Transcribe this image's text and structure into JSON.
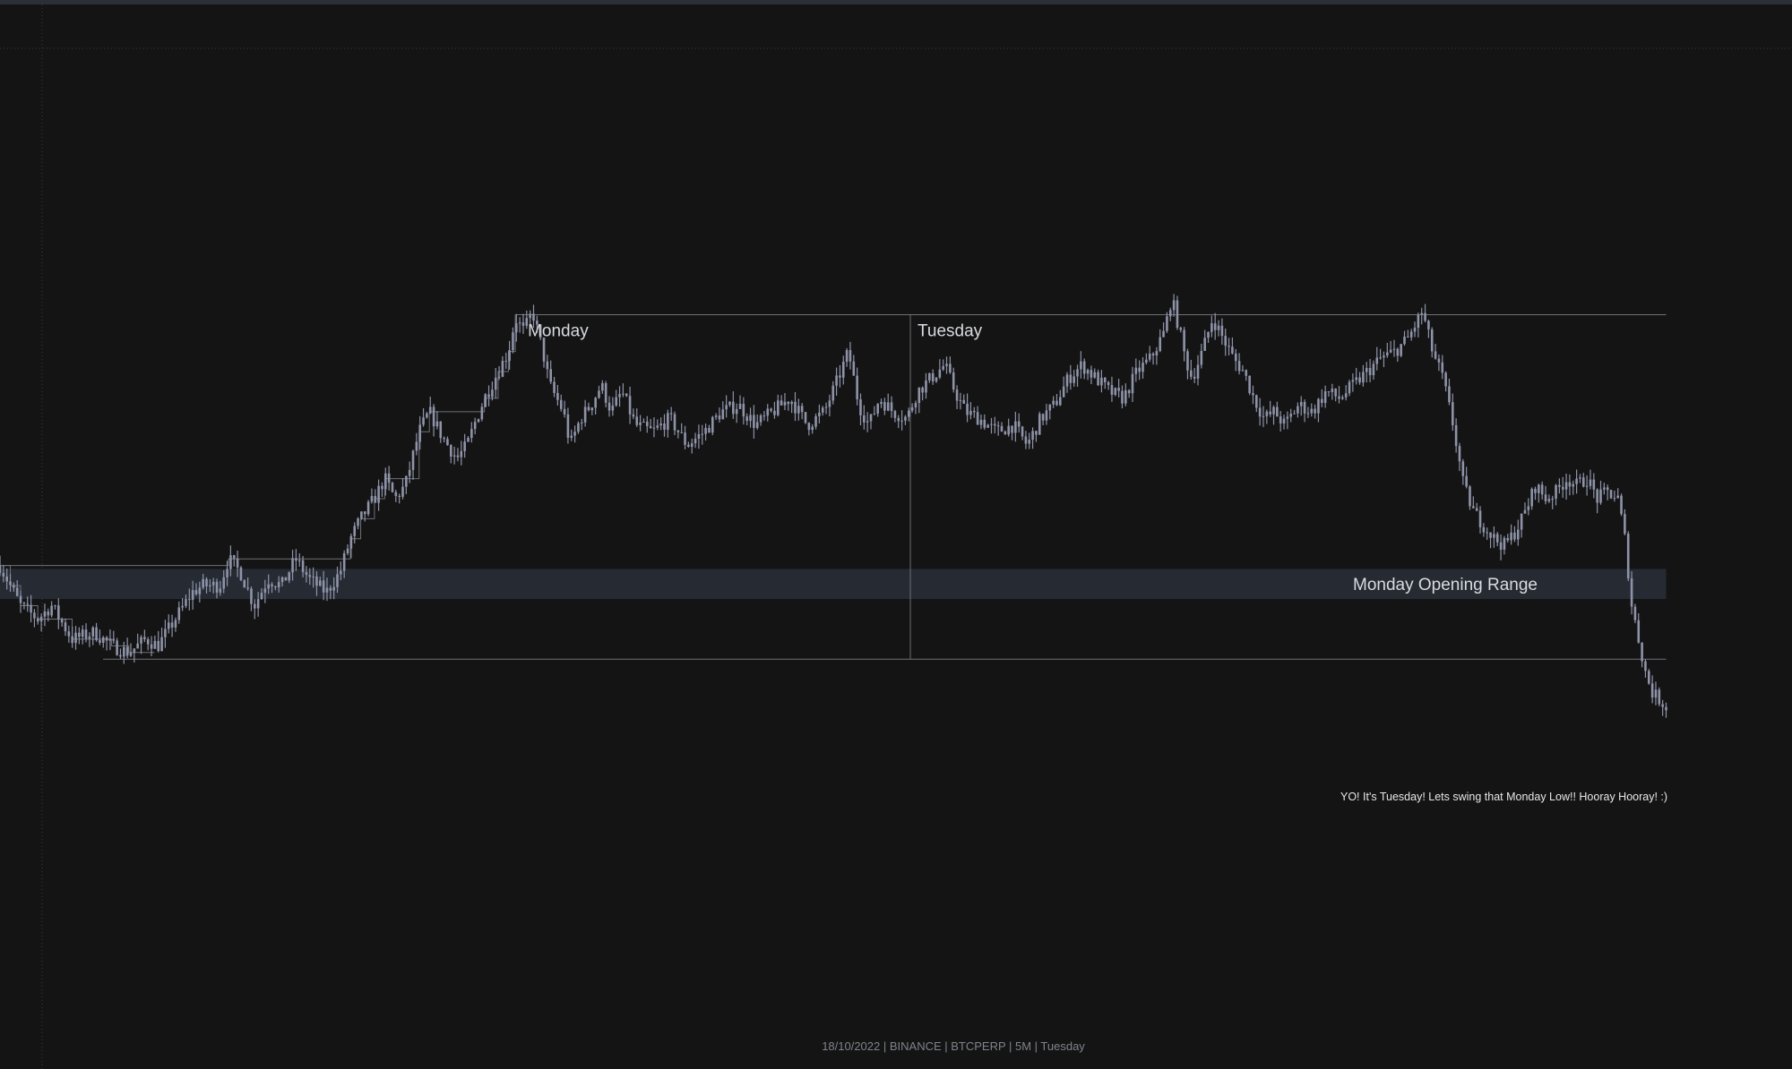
{
  "chart_data": {
    "type": "candlestick",
    "title": "",
    "xlabel": "",
    "ylabel": "",
    "grid": false,
    "legend": "none",
    "colors": {
      "background": "#141414",
      "candle": "#8e93a8",
      "level_line": "#6e7077",
      "range_fill": "#262b33",
      "label_text": "#d8dbe0",
      "footer_text": "#7f838b"
    },
    "y_scale": {
      "min": 0,
      "max": 100
    },
    "x_scale": {
      "min": 0,
      "max": 1000
    },
    "price_anchors": [
      [
        0,
        56
      ],
      [
        6,
        53
      ],
      [
        12,
        50
      ],
      [
        22,
        48
      ],
      [
        30,
        50
      ],
      [
        42,
        45
      ],
      [
        55,
        46
      ],
      [
        65,
        44
      ],
      [
        75,
        43
      ],
      [
        85,
        45
      ],
      [
        92,
        44
      ],
      [
        102,
        48
      ],
      [
        112,
        52
      ],
      [
        118,
        53
      ],
      [
        128,
        53
      ],
      [
        133,
        57
      ],
      [
        140,
        55
      ],
      [
        148,
        50
      ],
      [
        156,
        54
      ],
      [
        164,
        53
      ],
      [
        172,
        57
      ],
      [
        180,
        54
      ],
      [
        190,
        52
      ],
      [
        198,
        55
      ],
      [
        204,
        60
      ],
      [
        210,
        63
      ],
      [
        218,
        66
      ],
      [
        224,
        69
      ],
      [
        230,
        66
      ],
      [
        236,
        68
      ],
      [
        244,
        76
      ],
      [
        250,
        79
      ],
      [
        258,
        75
      ],
      [
        266,
        72
      ],
      [
        272,
        74
      ],
      [
        276,
        77
      ],
      [
        282,
        81
      ],
      [
        290,
        85
      ],
      [
        296,
        88
      ],
      [
        300,
        93
      ],
      [
        305,
        91
      ],
      [
        310,
        94
      ],
      [
        316,
        88
      ],
      [
        320,
        83
      ],
      [
        328,
        79
      ],
      [
        332,
        74
      ],
      [
        338,
        78
      ],
      [
        344,
        80
      ],
      [
        350,
        83
      ],
      [
        356,
        79
      ],
      [
        362,
        82
      ],
      [
        370,
        77
      ],
      [
        380,
        76
      ],
      [
        390,
        78
      ],
      [
        400,
        74
      ],
      [
        410,
        76
      ],
      [
        420,
        79
      ],
      [
        430,
        80
      ],
      [
        440,
        77
      ],
      [
        450,
        79
      ],
      [
        460,
        81
      ],
      [
        470,
        77
      ],
      [
        480,
        79
      ],
      [
        488,
        84
      ],
      [
        494,
        88
      ],
      [
        500,
        80
      ],
      [
        506,
        77
      ],
      [
        512,
        81
      ],
      [
        520,
        79
      ],
      [
        528,
        78
      ],
      [
        534,
        82
      ],
      [
        542,
        84
      ],
      [
        550,
        86
      ],
      [
        556,
        82
      ],
      [
        562,
        79
      ],
      [
        570,
        78
      ],
      [
        580,
        76
      ],
      [
        590,
        77
      ],
      [
        598,
        74
      ],
      [
        606,
        78
      ],
      [
        614,
        80
      ],
      [
        622,
        84
      ],
      [
        630,
        86
      ],
      [
        638,
        84
      ],
      [
        646,
        82
      ],
      [
        654,
        81
      ],
      [
        662,
        85
      ],
      [
        670,
        87
      ],
      [
        678,
        91
      ],
      [
        682,
        96
      ],
      [
        686,
        92
      ],
      [
        690,
        87
      ],
      [
        694,
        84
      ],
      [
        700,
        88
      ],
      [
        706,
        93
      ],
      [
        712,
        90
      ],
      [
        718,
        87
      ],
      [
        724,
        85
      ],
      [
        730,
        81
      ],
      [
        736,
        78
      ],
      [
        742,
        79
      ],
      [
        748,
        77
      ],
      [
        756,
        80
      ],
      [
        764,
        79
      ],
      [
        772,
        82
      ],
      [
        780,
        81
      ],
      [
        788,
        83
      ],
      [
        796,
        85
      ],
      [
        804,
        87
      ],
      [
        812,
        88
      ],
      [
        820,
        90
      ],
      [
        828,
        94
      ],
      [
        834,
        88
      ],
      [
        840,
        84
      ],
      [
        846,
        77
      ],
      [
        852,
        68
      ],
      [
        858,
        64
      ],
      [
        864,
        62
      ],
      [
        870,
        60
      ],
      [
        876,
        59
      ],
      [
        882,
        61
      ],
      [
        888,
        64
      ],
      [
        894,
        68
      ],
      [
        900,
        66
      ],
      [
        906,
        67
      ],
      [
        912,
        69
      ],
      [
        918,
        68
      ],
      [
        924,
        69
      ],
      [
        930,
        66
      ],
      [
        936,
        67
      ],
      [
        942,
        66
      ],
      [
        946,
        60
      ],
      [
        950,
        50
      ],
      [
        954,
        45
      ],
      [
        958,
        40
      ],
      [
        962,
        37
      ],
      [
        966,
        36
      ],
      [
        970,
        35
      ]
    ],
    "levels": {
      "monday_high": 93.5,
      "monday_low": 42,
      "opening_range_top": 55.5,
      "opening_range_bottom": 51
    },
    "dividers": {
      "monday_start": 300,
      "tuesday_start": 530,
      "range_end": 970
    },
    "day_labels": [
      "Monday",
      "Tuesday"
    ],
    "range_label": "Monday Opening Range",
    "note": "YO! It's Tuesday! Lets swing that Monday Low!! Hooray Hooray! :)"
  },
  "footer": {
    "text": "18/10/2022 | BINANCE | BTCPERP | 5M | Tuesday"
  }
}
